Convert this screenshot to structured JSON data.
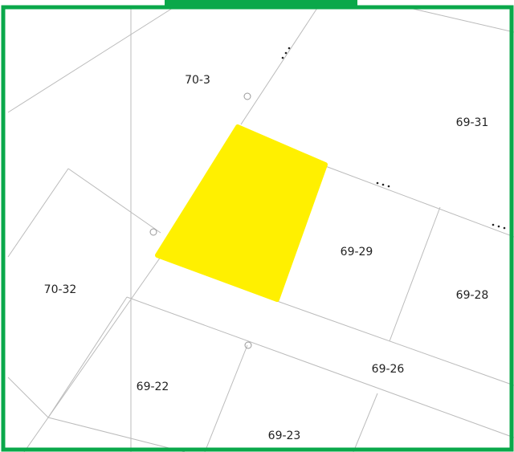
{
  "parcels": [
    {
      "label": "70-3"
    },
    {
      "label": "69-31"
    },
    {
      "label": "69-29"
    },
    {
      "label": "70-32"
    },
    {
      "label": "69-28"
    },
    {
      "label": "69-26"
    },
    {
      "label": "69-22"
    },
    {
      "label": "69-23"
    }
  ]
}
